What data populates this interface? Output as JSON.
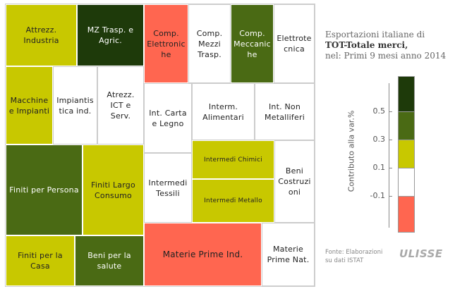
{
  "chart_data": {
    "type": "treemap",
    "title_lines": [
      "Esportazioni italiane di",
      "TOT-Totale merci,",
      "nel: Primi 9 mesi anno 2014"
    ],
    "legend": {
      "title": "Contributo alla var.%",
      "ticks": [
        "0.5",
        "0.3",
        "0.1",
        "-0.1"
      ],
      "swatch_colors": [
        "#1e3a0a",
        "#4a6a14",
        "#c8c800",
        "#ffffff",
        "#ff6650"
      ]
    },
    "cells": [
      {
        "label": "Attrezz. Industria",
        "color": "#c8c800",
        "contribution_band": "0.1 – 0.3"
      },
      {
        "label": "MZ Trasp. e Agric.",
        "color": "#1e3a0a",
        "contribution_band": "> 0.5"
      },
      {
        "label": "Comp. Elettroniche",
        "color": "#ff6650",
        "contribution_band": "< -0.1"
      },
      {
        "label": "Comp. Mezzi Trasp.",
        "color": "#ffffff",
        "contribution_band": "-0.1 – 0.1"
      },
      {
        "label": "Comp. Meccaniche",
        "color": "#4a6a14",
        "contribution_band": "0.3 – 0.5"
      },
      {
        "label": "Elettrotecnica",
        "color": "#ffffff",
        "contribution_band": "-0.1 – 0.1"
      },
      {
        "label": "Macchine e Impianti",
        "color": "#c8c800",
        "contribution_band": "0.1 – 0.3"
      },
      {
        "label": "Impiantistica ind.",
        "color": "#ffffff",
        "contribution_band": "-0.1 – 0.1"
      },
      {
        "label": "Atrezz. ICT e Serv.",
        "color": "#ffffff",
        "contribution_band": "-0.1 – 0.1"
      },
      {
        "label": "Int. Carta e Legno",
        "color": "#ffffff",
        "contribution_band": "-0.1 – 0.1"
      },
      {
        "label": "Interm. Alimentari",
        "color": "#ffffff",
        "contribution_band": "-0.1 – 0.1"
      },
      {
        "label": "Int. Non Metalliferi",
        "color": "#ffffff",
        "contribution_band": "-0.1 – 0.1"
      },
      {
        "label": "Finiti per Persona",
        "color": "#4a6a14",
        "contribution_band": "0.3 – 0.5"
      },
      {
        "label": "Finiti Largo Consumo",
        "color": "#c8c800",
        "contribution_band": "0.1 – 0.3"
      },
      {
        "label": "Intermedi Tessili",
        "color": "#ffffff",
        "contribution_band": "-0.1 – 0.1"
      },
      {
        "label": "Intermedi Chimici",
        "color": "#c8c800",
        "contribution_band": "0.1 – 0.3"
      },
      {
        "label": "Intermedi Metallo",
        "color": "#c8c800",
        "contribution_band": "0.1 – 0.3"
      },
      {
        "label": "Beni Costruzioni",
        "color": "#ffffff",
        "contribution_band": "-0.1 – 0.1"
      },
      {
        "label": "Materie Prime Ind.",
        "color": "#ff6650",
        "contribution_band": "< -0.1"
      },
      {
        "label": "Materie Prime Nat.",
        "color": "#ffffff",
        "contribution_band": "-0.1 – 0.1"
      },
      {
        "label": "Finiti per la Casa",
        "color": "#c8c800",
        "contribution_band": "0.1 – 0.3"
      },
      {
        "label": "Beni per la salute",
        "color": "#4a6a14",
        "contribution_band": "0.3 – 0.5"
      }
    ]
  },
  "source": {
    "line1": "Fonte: Elaborazioni",
    "line2": "su dati ISTAT"
  },
  "logo_text": "ULISSE"
}
